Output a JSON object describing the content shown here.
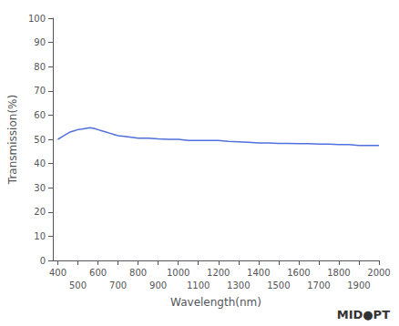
{
  "chart_data": {
    "type": "line",
    "x": [
      400,
      420,
      440,
      460,
      480,
      500,
      520,
      540,
      560,
      580,
      600,
      620,
      640,
      660,
      680,
      700,
      750,
      800,
      850,
      900,
      950,
      1000,
      1050,
      1100,
      1150,
      1200,
      1250,
      1300,
      1350,
      1400,
      1450,
      1500,
      1550,
      1600,
      1650,
      1700,
      1750,
      1800,
      1850,
      1900,
      1950,
      2000
    ],
    "values": [
      50,
      51,
      52,
      53,
      53.5,
      54,
      54.2,
      54.5,
      54.8,
      54.5,
      54,
      53.5,
      53,
      52.5,
      52,
      51.5,
      51,
      50.5,
      50.5,
      50.2,
      50,
      50,
      49.5,
      49.5,
      49.5,
      49.5,
      49.2,
      49.0,
      48.8,
      48.5,
      48.5,
      48.3,
      48.3,
      48.2,
      48.2,
      48.0,
      48.0,
      47.8,
      47.8,
      47.5,
      47.5,
      47.5
    ],
    "xlabel": "Wavelength(nm)",
    "ylabel": "Transmission(%)",
    "xlim": [
      375,
      2000
    ],
    "ylim": [
      0,
      100
    ],
    "xticks": [
      400,
      500,
      600,
      700,
      800,
      900,
      1000,
      1100,
      1200,
      1300,
      1400,
      1500,
      1600,
      1700,
      1800,
      1900,
      2000
    ],
    "yticks": [
      0,
      10,
      20,
      30,
      40,
      50,
      60,
      70,
      80,
      90,
      100
    ],
    "annotations": [
      "MID●PT"
    ],
    "grid": false
  }
}
